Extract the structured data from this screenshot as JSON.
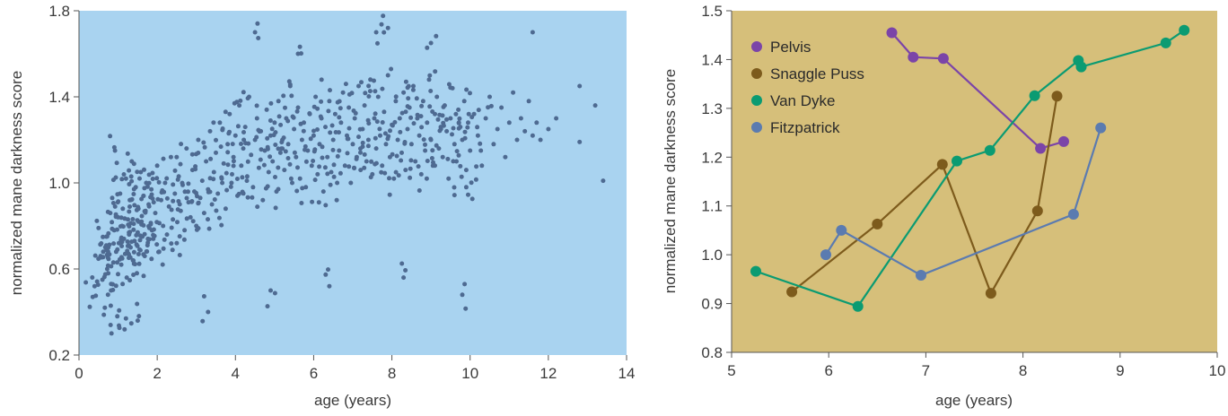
{
  "chart_data": [
    {
      "type": "scatter",
      "title": "",
      "xlabel": "age (years)",
      "ylabel": "normalized mane darkness score",
      "xlim": [
        0,
        14
      ],
      "ylim": [
        0.2,
        1.8
      ],
      "xticks": [
        0,
        2,
        4,
        6,
        8,
        10,
        12,
        14
      ],
      "yticks": [
        0.2,
        0.6,
        1.0,
        1.4,
        1.8
      ],
      "tick_labels_x": [
        "0",
        "2",
        "4",
        "6",
        "8",
        "10",
        "12",
        "14"
      ],
      "tick_labels_y": [
        "0.2",
        "0.6",
        "1.0",
        "1.4",
        "1.8"
      ],
      "background": "#a9d3f0",
      "point_color": "#4e6a91",
      "grid": false,
      "points_note_hidden": true,
      "x": [
        0.35,
        0.4,
        0.5,
        0.55,
        0.6,
        0.62,
        0.66,
        0.7,
        0.72,
        0.75,
        0.8,
        0.82,
        0.85,
        0.88,
        0.9,
        0.92,
        0.95,
        0.98,
        1.0,
        1.02,
        1.05,
        1.08,
        1.1,
        1.12,
        1.15,
        1.18,
        1.2,
        1.22,
        1.25,
        1.28,
        1.3,
        1.32,
        1.35,
        1.38,
        1.4,
        1.42,
        1.45,
        1.48,
        1.5,
        1.52,
        1.55,
        1.58,
        1.6,
        1.62,
        1.65,
        1.68,
        1.7,
        1.72,
        1.75,
        1.78,
        1.8,
        1.85,
        1.9,
        1.95,
        2.0,
        2.05,
        2.1,
        2.15,
        2.2,
        2.25,
        2.3,
        2.35,
        2.4,
        2.45,
        2.5,
        2.55,
        2.6,
        2.65,
        2.7,
        2.75,
        2.8,
        2.85,
        2.9,
        2.95,
        3.0,
        3.05,
        3.1,
        3.15,
        3.2,
        3.25,
        3.3,
        3.35,
        3.4,
        3.45,
        3.5,
        3.55,
        3.6,
        3.65,
        3.7,
        3.75,
        3.8,
        3.85,
        3.9,
        3.95,
        4.0,
        4.05,
        4.1,
        4.15,
        4.2,
        4.25,
        4.3,
        4.35,
        4.4,
        4.45,
        4.5,
        4.55,
        4.6,
        4.65,
        4.7,
        4.75,
        4.8,
        4.85,
        4.9,
        4.95,
        5.0,
        5.05,
        5.1,
        5.15,
        5.2,
        5.25,
        5.3,
        5.35,
        5.4,
        5.45,
        5.5,
        5.55,
        5.6,
        5.65,
        5.7,
        5.75,
        5.8,
        5.85,
        5.9,
        5.95,
        6.0,
        6.05,
        6.1,
        6.15,
        6.2,
        6.25,
        6.3,
        6.35,
        6.4,
        6.45,
        6.5,
        6.55,
        6.6,
        6.65,
        6.7,
        6.75,
        6.8,
        6.85,
        6.9,
        6.95,
        7.0,
        7.05,
        7.1,
        7.15,
        7.2,
        7.25,
        7.3,
        7.35,
        7.4,
        7.45,
        7.5,
        7.55,
        7.6,
        7.65,
        7.7,
        7.75,
        7.8,
        7.85,
        7.9,
        7.95,
        8.0,
        8.05,
        8.1,
        8.15,
        8.2,
        8.25,
        8.3,
        8.35,
        8.4,
        8.45,
        8.5,
        8.55,
        8.6,
        8.65,
        8.7,
        8.75,
        8.8,
        8.85,
        8.9,
        8.95,
        9.0,
        9.05,
        9.1,
        9.15,
        9.2,
        9.25,
        9.3,
        9.35,
        9.4,
        9.45,
        9.5,
        9.55,
        9.6,
        9.65,
        9.7,
        9.75,
        9.8,
        9.85,
        9.9,
        9.95,
        10.0,
        10.1,
        10.2,
        10.3,
        10.4,
        10.5,
        10.6,
        10.7,
        10.8,
        10.9,
        11.0,
        11.1,
        11.2,
        11.3,
        11.4,
        11.5,
        11.6,
        11.7,
        11.8,
        12.0,
        12.2,
        12.8,
        12.8,
        13.2,
        13.4,
        4.5,
        5.6,
        7.6,
        7.9,
        9.0,
        9.8,
        11.6,
        1.2,
        1.5,
        3.3,
        9.9,
        6.4,
        4.9,
        8.3
      ],
      "y": [
        0.47,
        0.52,
        0.79,
        0.66,
        0.55,
        0.68,
        0.42,
        0.75,
        0.6,
        0.7,
        0.86,
        0.5,
        0.93,
        0.63,
        0.78,
        1.15,
        0.68,
        0.38,
        0.84,
        0.72,
        0.95,
        0.62,
        0.8,
        0.88,
        0.74,
        0.67,
        1.02,
        0.56,
        0.83,
        0.76,
        0.92,
        0.7,
        1.1,
        0.64,
        0.81,
        0.73,
        0.98,
        0.58,
        0.77,
        0.88,
        0.69,
        1.05,
        0.82,
        0.75,
        0.94,
        0.66,
        0.87,
        1.0,
        0.71,
        0.9,
        0.79,
        0.97,
        0.74,
        0.86,
        1.08,
        0.68,
        0.92,
        0.8,
        1.0,
        0.76,
        0.89,
        1.12,
        0.83,
        0.95,
        0.72,
        1.03,
        0.87,
        0.99,
        0.78,
        1.16,
        0.91,
        0.84,
        1.06,
        0.96,
        0.8,
        1.2,
        0.93,
        1.01,
        0.86,
        1.1,
        0.97,
        1.24,
        0.9,
        1.05,
        1.14,
        0.95,
        1.28,
        1.02,
        1.09,
        0.88,
        1.18,
        1.32,
        1.0,
        1.12,
        1.22,
        0.94,
        1.36,
        1.08,
        1.16,
        1.26,
        1.03,
        1.4,
        1.13,
        0.98,
        1.2,
        1.3,
        1.07,
        1.24,
        0.92,
        1.15,
        1.34,
        1.05,
        1.22,
        1.1,
        1.28,
        0.96,
        1.38,
        1.14,
        1.2,
        1.06,
        1.3,
        1.18,
        1.45,
        1.0,
        1.25,
        1.12,
        1.35,
        1.02,
        1.2,
        1.28,
        0.98,
        1.15,
        1.32,
        1.08,
        1.22,
        1.4,
        1.04,
        1.18,
        1.3,
        0.96,
        1.26,
        1.12,
        1.38,
        1.05,
        1.2,
        1.32,
        1.0,
        1.15,
        1.28,
        1.42,
        1.08,
        1.22,
        1.35,
        1.0,
        1.18,
        1.3,
        1.12,
        1.45,
        1.06,
        1.25,
        1.36,
        1.1,
        1.2,
        1.48,
        1.04,
        1.3,
        1.16,
        1.4,
        1.22,
        1.08,
        1.33,
        1.18,
        1.5,
        1.12,
        1.27,
        1.02,
        1.38,
        1.2,
        1.3,
        1.14,
        1.42,
        1.06,
        1.25,
        1.35,
        1.18,
        1.45,
        1.1,
        1.3,
        1.22,
        1.04,
        1.38,
        1.15,
        1.28,
        1.48,
        1.2,
        1.08,
        1.32,
        1.4,
        1.16,
        1.26,
        1.12,
        1.36,
        1.24,
        1.02,
        1.3,
        1.44,
        1.18,
        1.1,
        1.34,
        1.26,
        1.2,
        1.38,
        1.06,
        1.28,
        1.15,
        1.32,
        1.22,
        1.08,
        1.3,
        1.4,
        1.18,
        1.25,
        1.35,
        1.12,
        1.28,
        1.42,
        1.2,
        1.3,
        1.24,
        1.38,
        1.22,
        1.28,
        1.2,
        1.25,
        1.3,
        1.45,
        1.19,
        1.36,
        1.01,
        1.7,
        1.6,
        1.7,
        1.72,
        1.65,
        0.48,
        1.7,
        0.37,
        0.36,
        0.4,
        0.98,
        0.52,
        0.5,
        0.56
      ]
    },
    {
      "type": "line",
      "title": "",
      "xlabel": "age (years)",
      "ylabel": "normalized mane darkness score",
      "xlim": [
        5,
        10
      ],
      "ylim": [
        0.8,
        1.5
      ],
      "xticks": [
        5,
        6,
        7,
        8,
        9,
        10
      ],
      "yticks": [
        0.8,
        0.9,
        1.0,
        1.1,
        1.2,
        1.3,
        1.4,
        1.5
      ],
      "tick_labels_x": [
        "5",
        "6",
        "7",
        "8",
        "9",
        "10"
      ],
      "tick_labels_y": [
        "0.8",
        "0.9",
        "1.0",
        "1.1",
        "1.2",
        "1.3",
        "1.4",
        "1.5"
      ],
      "background": "#d6bf7a",
      "grid": false,
      "legend_position": "top-left",
      "series": [
        {
          "name": "Pelvis",
          "color": "#7b44a8",
          "x": [
            6.65,
            6.87,
            7.18,
            8.18,
            8.42
          ],
          "y": [
            1.455,
            1.405,
            1.402,
            1.218,
            1.232
          ]
        },
        {
          "name": "Snaggle Puss",
          "color": "#7d5b1c",
          "x": [
            5.62,
            6.5,
            7.17,
            7.67,
            8.15,
            8.35
          ],
          "y": [
            0.924,
            1.063,
            1.185,
            0.921,
            1.09,
            1.325
          ]
        },
        {
          "name": "Van Dyke",
          "color": "#0b9b72",
          "x": [
            5.25,
            6.3,
            7.32,
            7.66,
            8.12,
            8.57,
            8.6,
            9.47,
            9.66
          ],
          "y": [
            0.966,
            0.894,
            1.192,
            1.214,
            1.326,
            1.398,
            1.385,
            1.434,
            1.46
          ]
        },
        {
          "name": "Fitzpatrick",
          "color": "#5b7bb0",
          "x": [
            5.97,
            6.13,
            6.95,
            8.52,
            8.8
          ],
          "y": [
            1.0,
            1.05,
            0.958,
            1.083,
            1.26
          ]
        }
      ]
    }
  ]
}
